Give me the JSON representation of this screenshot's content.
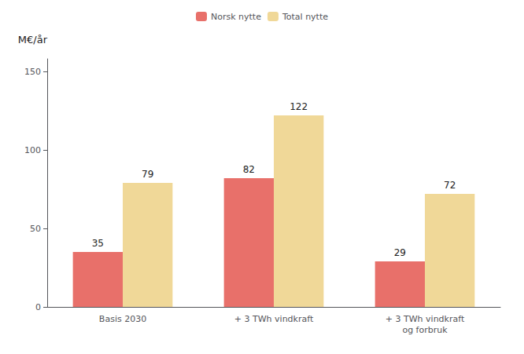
{
  "chart_data": {
    "type": "bar",
    "categories": [
      "Basis 2030",
      "+ 3 TWh vindkraft",
      "+ 3 TWh vindkraft\nog forbruk"
    ],
    "series": [
      {
        "name": "Norsk nytte",
        "color": "#e8706a",
        "values": [
          35,
          82,
          29
        ]
      },
      {
        "name": "Total nytte",
        "color": "#f0d898",
        "values": [
          79,
          122,
          72
        ]
      }
    ],
    "ylabel": "M€/år",
    "ylim": [
      0,
      158
    ],
    "yticks": [
      0,
      50,
      100,
      150
    ],
    "grid": false,
    "legend": "top",
    "data_labels": true
  }
}
